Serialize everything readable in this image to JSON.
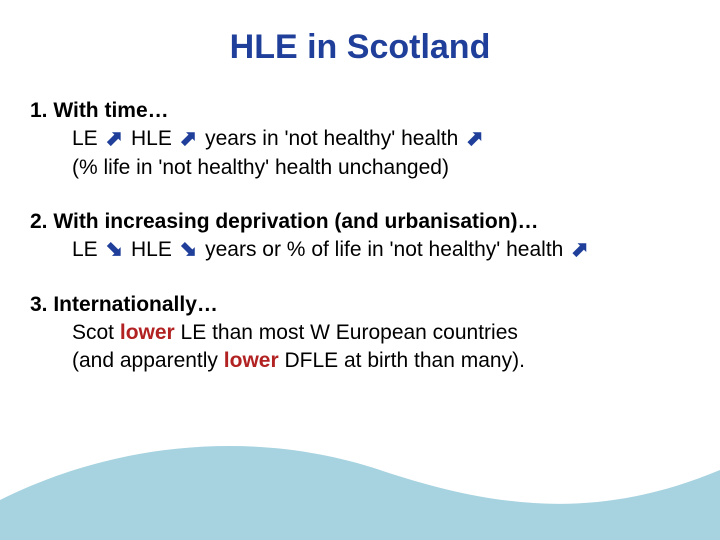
{
  "title": {
    "text": "HLE in Scotland",
    "color": "#1f3f9a",
    "fontsize": 34
  },
  "body": {
    "fontsize": 21,
    "textcolor": "#000000",
    "arrow_color": "#1f3f9a",
    "keyword_color": "#b22222",
    "arrow_up_glyph": "⬈",
    "arrow_down_glyph": "⬊"
  },
  "items": [
    {
      "heading": "1. With time…",
      "lines": [
        {
          "parts": [
            {
              "t": "text",
              "v": "LE "
            },
            {
              "t": "arrow",
              "dir": "up"
            },
            {
              "t": "text",
              "v": "  HLE "
            },
            {
              "t": "arrow",
              "dir": "up"
            },
            {
              "t": "text",
              "v": "  years in 'not healthy' health "
            },
            {
              "t": "arrow",
              "dir": "up"
            }
          ]
        },
        {
          "parts": [
            {
              "t": "text",
              "v": "(% life in 'not healthy' health unchanged)"
            }
          ]
        }
      ]
    },
    {
      "heading": "2. With increasing deprivation (and urbanisation)…",
      "lines": [
        {
          "parts": [
            {
              "t": "text",
              "v": "LE "
            },
            {
              "t": "arrow",
              "dir": "down"
            },
            {
              "t": "text",
              "v": "  HLE "
            },
            {
              "t": "arrow",
              "dir": "down"
            },
            {
              "t": "text",
              "v": "  years or % of life in 'not healthy' health "
            },
            {
              "t": "arrow",
              "dir": "up"
            }
          ]
        }
      ]
    },
    {
      "heading": "3. Internationally…",
      "lines": [
        {
          "parts": [
            {
              "t": "text",
              "v": "Scot "
            },
            {
              "t": "keyword",
              "v": "lower"
            },
            {
              "t": "text",
              "v": " LE than most W European countries"
            }
          ]
        },
        {
          "parts": [
            {
              "t": "text",
              "v": "(and apparently "
            },
            {
              "t": "keyword",
              "v": "lower"
            },
            {
              "t": "text",
              "v": " DFLE at birth than many)."
            }
          ]
        }
      ]
    }
  ],
  "wave": {
    "color": "#a7d3e0"
  }
}
